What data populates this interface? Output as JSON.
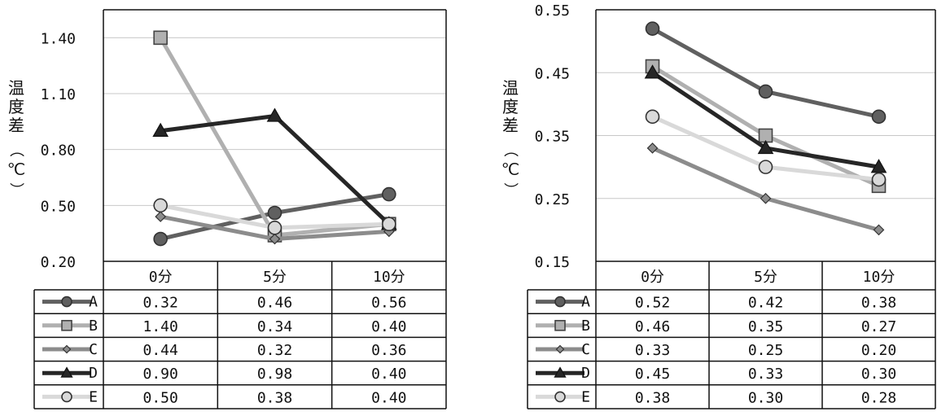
{
  "chart_data": [
    {
      "type": "line",
      "ylabel": "温度差（℃）",
      "ylim": [
        0.2,
        1.55
      ],
      "y_ticks": [
        "0.20",
        "0.50",
        "0.80",
        "1.10",
        "1.40"
      ],
      "categories": [
        "0分",
        "5分",
        "10分"
      ],
      "grid": true,
      "data_table": true,
      "series": [
        {
          "name": "A",
          "marker": "circle",
          "color": "#606060",
          "values": [
            0.32,
            0.46,
            0.56
          ],
          "labels": [
            "0.32",
            "0.46",
            "0.56"
          ]
        },
        {
          "name": "B",
          "marker": "square",
          "color": "#b0b0b0",
          "values": [
            1.4,
            0.34,
            0.4
          ],
          "labels": [
            "1.40",
            "0.34",
            "0.40"
          ]
        },
        {
          "name": "C",
          "marker": "diamond",
          "color": "#8c8c8c",
          "values": [
            0.44,
            0.32,
            0.36
          ],
          "labels": [
            "0.44",
            "0.32",
            "0.36"
          ]
        },
        {
          "name": "D",
          "marker": "triangle",
          "color": "#262626",
          "values": [
            0.9,
            0.98,
            0.4
          ],
          "labels": [
            "0.90",
            "0.98",
            "0.40"
          ]
        },
        {
          "name": "E",
          "marker": "circle-light",
          "color": "#d9d9d9",
          "values": [
            0.5,
            0.38,
            0.4
          ],
          "labels": [
            "0.50",
            "0.38",
            "0.40"
          ]
        }
      ]
    },
    {
      "type": "line",
      "ylabel": "温度差（℃）",
      "ylim": [
        0.15,
        0.55
      ],
      "y_ticks": [
        "0.15",
        "0.25",
        "0.35",
        "0.45",
        "0.55"
      ],
      "categories": [
        "0分",
        "5分",
        "10分"
      ],
      "grid": true,
      "data_table": true,
      "series": [
        {
          "name": "A",
          "marker": "circle",
          "color": "#606060",
          "values": [
            0.52,
            0.42,
            0.38
          ],
          "labels": [
            "0.52",
            "0.42",
            "0.38"
          ]
        },
        {
          "name": "B",
          "marker": "square",
          "color": "#b0b0b0",
          "values": [
            0.46,
            0.35,
            0.27
          ],
          "labels": [
            "0.46",
            "0.35",
            "0.27"
          ]
        },
        {
          "name": "C",
          "marker": "diamond",
          "color": "#8c8c8c",
          "values": [
            0.33,
            0.25,
            0.2
          ],
          "labels": [
            "0.33",
            "0.25",
            "0.20"
          ]
        },
        {
          "name": "D",
          "marker": "triangle",
          "color": "#262626",
          "values": [
            0.45,
            0.33,
            0.3
          ],
          "labels": [
            "0.45",
            "0.33",
            "0.30"
          ]
        },
        {
          "name": "E",
          "marker": "circle-light",
          "color": "#d9d9d9",
          "values": [
            0.38,
            0.3,
            0.28
          ],
          "labels": [
            "0.38",
            "0.30",
            "0.28"
          ]
        }
      ]
    }
  ]
}
